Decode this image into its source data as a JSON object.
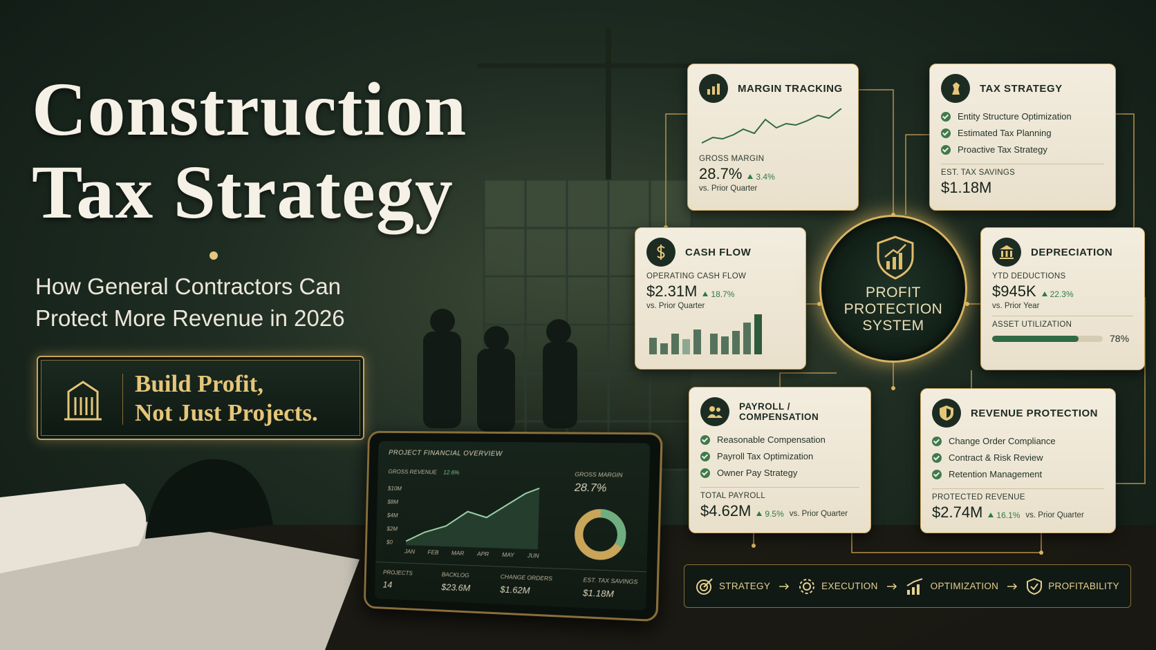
{
  "hero": {
    "title_lines": [
      "Construction",
      "Tax Strategy"
    ],
    "subtitle_lines": [
      "How General Contractors Can",
      "Protect More Revenue in 2026"
    ],
    "badge_lines": [
      "Build Profit,",
      "Not Just Projects."
    ]
  },
  "center": {
    "lines": [
      "PROFIT",
      "PROTECTION",
      "SYSTEM"
    ]
  },
  "cards": {
    "margin_tracking": {
      "title": "MARGIN TRACKING",
      "metric_label": "GROSS MARGIN",
      "metric": "28.7%",
      "change": "3.4%",
      "compare": "vs. Prior Quarter"
    },
    "tax_strategy": {
      "title": "TAX STRATEGY",
      "items": [
        "Entity Structure Optimization",
        "Estimated Tax Planning",
        "Proactive Tax Strategy"
      ],
      "metric_label": "EST. TAX SAVINGS",
      "metric": "$1.18M"
    },
    "cash_flow": {
      "title": "CASH FLOW",
      "metric_label": "OPERATING CASH FLOW",
      "metric": "$2.31M",
      "change": "18.7%",
      "compare": "vs. Prior Quarter"
    },
    "depreciation": {
      "title": "DEPRECIATION",
      "metric_label": "YTD DEDUCTIONS",
      "metric": "$945K",
      "change": "22.3%",
      "compare": "vs. Prior Year",
      "utilization_label": "ASSET UTILIZATION",
      "utilization": {
        "value": 78,
        "label": "78%"
      }
    },
    "payroll": {
      "title": "PAYROLL / COMPENSATION",
      "items": [
        "Reasonable Compensation",
        "Payroll Tax Optimization",
        "Owner Pay Strategy"
      ],
      "metric_label": "TOTAL PAYROLL",
      "metric": "$4.62M",
      "change": "9.5%",
      "compare": "vs. Prior Quarter"
    },
    "revenue_protection": {
      "title": "REVENUE PROTECTION",
      "items": [
        "Change Order Compliance",
        "Contract & Risk Review",
        "Retention Management"
      ],
      "metric_label": "PROTECTED REVENUE",
      "metric": "$2.74M",
      "change": "16.1%",
      "compare": "vs. Prior Quarter"
    }
  },
  "tablet": {
    "title": "PROJECT FINANCIAL OVERVIEW",
    "revenue_label": "GROSS REVENUE",
    "revenue_change": "12.6%",
    "y_labels": [
      "$10M",
      "$8M",
      "$4M",
      "$2M",
      "$0"
    ],
    "months": [
      "JAN",
      "FEB",
      "MAR",
      "APR",
      "MAY",
      "JUN"
    ],
    "margin_label": "GROSS MARGIN",
    "margin": "28.7%",
    "stats": [
      {
        "label": "PROJECTS",
        "value": "14"
      },
      {
        "label": "BACKLOG",
        "value": "$23.6M"
      },
      {
        "label": "CHANGE ORDERS",
        "value": "$1.62M"
      },
      {
        "label": "EST. TAX SAVINGS",
        "value": "$1.18M"
      }
    ]
  },
  "flow": [
    "STRATEGY",
    "EXECUTION",
    "OPTIMIZATION",
    "PROFITABILITY"
  ]
}
